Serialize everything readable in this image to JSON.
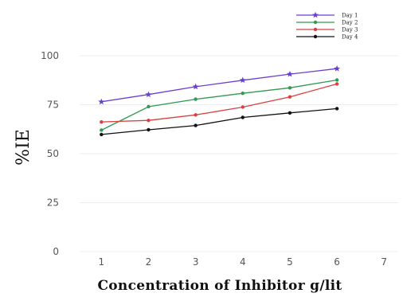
{
  "chart_data": {
    "type": "line",
    "xlabel": "Concentration of Inhibitor g/lit",
    "ylabel": "%IE",
    "x": [
      1,
      2,
      3,
      4,
      5,
      6
    ],
    "xticks": [
      1,
      2,
      3,
      4,
      5,
      6,
      7
    ],
    "yticks": [
      0,
      25,
      50,
      75,
      100
    ],
    "xlim": [
      0.2,
      7.3
    ],
    "ylim": [
      0,
      100
    ],
    "grid": true,
    "legend": "top-right",
    "series": [
      {
        "name": "Day 1",
        "color": "#6a3fd0",
        "marker": "star",
        "values": [
          76.5,
          80.2,
          84.2,
          87.5,
          90.6,
          93.4
        ]
      },
      {
        "name": "Day 2",
        "color": "#2e9a52",
        "marker": "circle",
        "values": [
          62.0,
          74.0,
          77.8,
          80.8,
          83.6,
          87.6
        ]
      },
      {
        "name": "Day 3",
        "color": "#d94040",
        "marker": "circle",
        "values": [
          66.2,
          67.0,
          69.8,
          73.8,
          79.0,
          85.6
        ]
      },
      {
        "name": "Day 4",
        "color": "#111111",
        "marker": "circle",
        "values": [
          59.8,
          62.2,
          64.4,
          68.5,
          70.8,
          73.0
        ]
      }
    ]
  }
}
